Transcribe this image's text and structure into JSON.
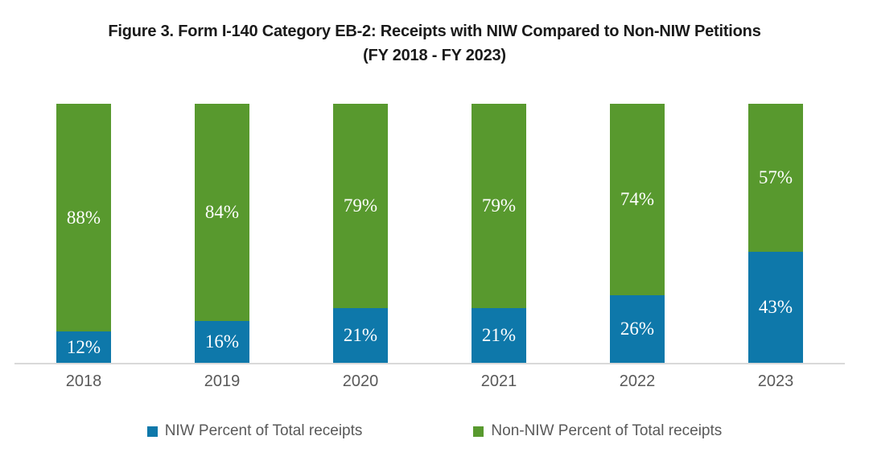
{
  "title": {
    "line1": "Figure 3. Form I-140 Category EB-2: Receipts with NIW Compared to Non-NIW Petitions",
    "line2": "(FY 2018 - FY 2023)"
  },
  "legend": [
    {
      "label": "NIW Percent of Total receipts",
      "color": "#0e78aa",
      "swatch_icon": "legend-square-blue"
    },
    {
      "label": "Non-NIW Percent of Total receipts",
      "color": "#58992e",
      "swatch_icon": "legend-square-green"
    }
  ],
  "colors": {
    "niw_blue": "#0e78aa",
    "non_niw_green": "#58992e",
    "axis_line": "#d9d9d9",
    "tick_label_gray": "#595959",
    "title_text": "#1a1a1a",
    "bar_label_white": "#ffffff"
  },
  "chart_data": {
    "type": "bar",
    "stacked": true,
    "orientation": "vertical",
    "title": "Figure 3. Form I-140 Category EB-2: Receipts with NIW Compared to Non-NIW Petitions (FY 2018 - FY 2023)",
    "categories": [
      "2018",
      "2019",
      "2020",
      "2021",
      "2022",
      "2023"
    ],
    "series": [
      {
        "name": "NIW Percent of Total receipts",
        "color": "#0e78aa",
        "values": [
          12,
          16,
          21,
          21,
          26,
          43
        ]
      },
      {
        "name": "Non-NIW Percent of Total receipts",
        "color": "#58992e",
        "values": [
          88,
          84,
          79,
          79,
          74,
          57
        ]
      }
    ],
    "value_label_format": "percent",
    "value_labels_visible": true,
    "xlabel": "",
    "ylabel": "",
    "ylim": [
      0,
      100
    ],
    "grid": false,
    "y_axis_visible": false,
    "legend_position": "bottom"
  }
}
